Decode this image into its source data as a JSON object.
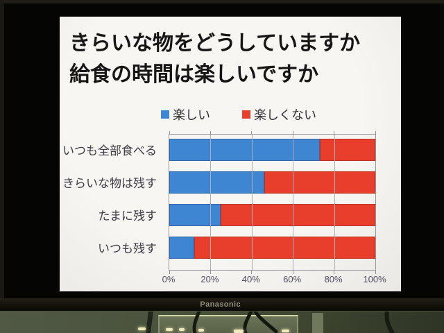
{
  "device": {
    "brand_label": "Panasonic"
  },
  "slide": {
    "title_line1": "きらいな物をどうしていますか",
    "title_line2": "給食の時間は楽しいですか"
  },
  "chart_data": {
    "type": "bar",
    "orientation": "horizontal-stacked",
    "title": "きらいな物をどうしていますか 給食の時間は楽しいですか",
    "categories": [
      "いつも全部食べる",
      "きらいな物は残す",
      "たまに残す",
      "いつも残す"
    ],
    "series": [
      {
        "name": "楽しい",
        "color": "#3e86d2",
        "values": [
          73,
          46,
          25,
          12
        ]
      },
      {
        "name": "楽しくない",
        "color": "#e83e2c",
        "values": [
          27,
          54,
          75,
          88
        ]
      }
    ],
    "x_ticks": [
      "0%",
      "20%",
      "40%",
      "60%",
      "80%",
      "100%"
    ],
    "xlim": [
      0,
      100
    ],
    "grid": true,
    "legend_position": "top",
    "units": "percent"
  }
}
